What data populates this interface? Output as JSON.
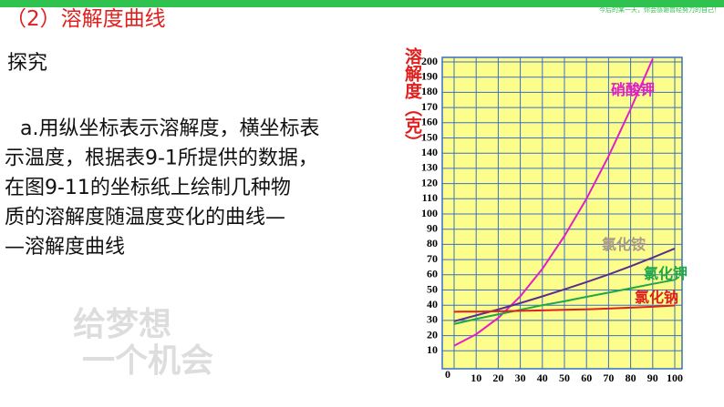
{
  "slide": {
    "motto": "今后的某一天，你会感谢曾经努力的自己！",
    "title": "（2）溶解度曲线",
    "heading": "探究",
    "paragraph": [
      "a.用纵坐标表示溶解度，横坐标表",
      "示温度，根据表9-1所提供的数据，",
      "在图9-11的坐标纸上绘制几种物",
      "质的溶解度随温度变化的曲线—",
      "—溶解度曲线"
    ],
    "watermark": [
      "给梦想",
      "一个机会"
    ]
  },
  "chart_data": {
    "type": "line",
    "y_label": "溶解度（克）",
    "x": [
      0,
      10,
      20,
      30,
      40,
      50,
      60,
      70,
      80,
      90,
      100
    ],
    "series": [
      {
        "name": "硝酸钾",
        "color": "#e01fc8",
        "values": [
          13.3,
          20.9,
          31.6,
          45.8,
          63.9,
          85.5,
          110,
          138,
          169,
          202,
          null
        ]
      },
      {
        "name": "氯化铵",
        "color": "#5b2d8e",
        "label_color": "#a89a8a",
        "values": [
          29.4,
          33.3,
          37.2,
          41.4,
          45.8,
          50.4,
          55.2,
          60.2,
          65.6,
          71.3,
          77.3
        ]
      },
      {
        "name": "氯化钾",
        "color": "#1fa84a",
        "values": [
          27.6,
          31,
          34,
          37,
          40,
          42.6,
          45.5,
          48.3,
          51.1,
          54,
          56.7
        ]
      },
      {
        "name": "氯化钠",
        "color": "#e0201e",
        "values": [
          35.7,
          35.8,
          36,
          36.3,
          36.6,
          37,
          37.3,
          37.8,
          38.4,
          39,
          39.8
        ]
      }
    ],
    "xlim": [
      0,
      100
    ],
    "xticks": [
      0,
      10,
      20,
      30,
      40,
      50,
      60,
      70,
      80,
      90,
      100
    ],
    "ylim": [
      0,
      200
    ],
    "yticks": [
      10,
      20,
      30,
      40,
      50,
      60,
      70,
      80,
      90,
      100,
      110,
      120,
      130,
      140,
      150,
      160,
      170,
      180,
      190,
      200
    ],
    "grid": true,
    "grid_color": "#3a6fc4",
    "background": "#fdfd8c"
  }
}
